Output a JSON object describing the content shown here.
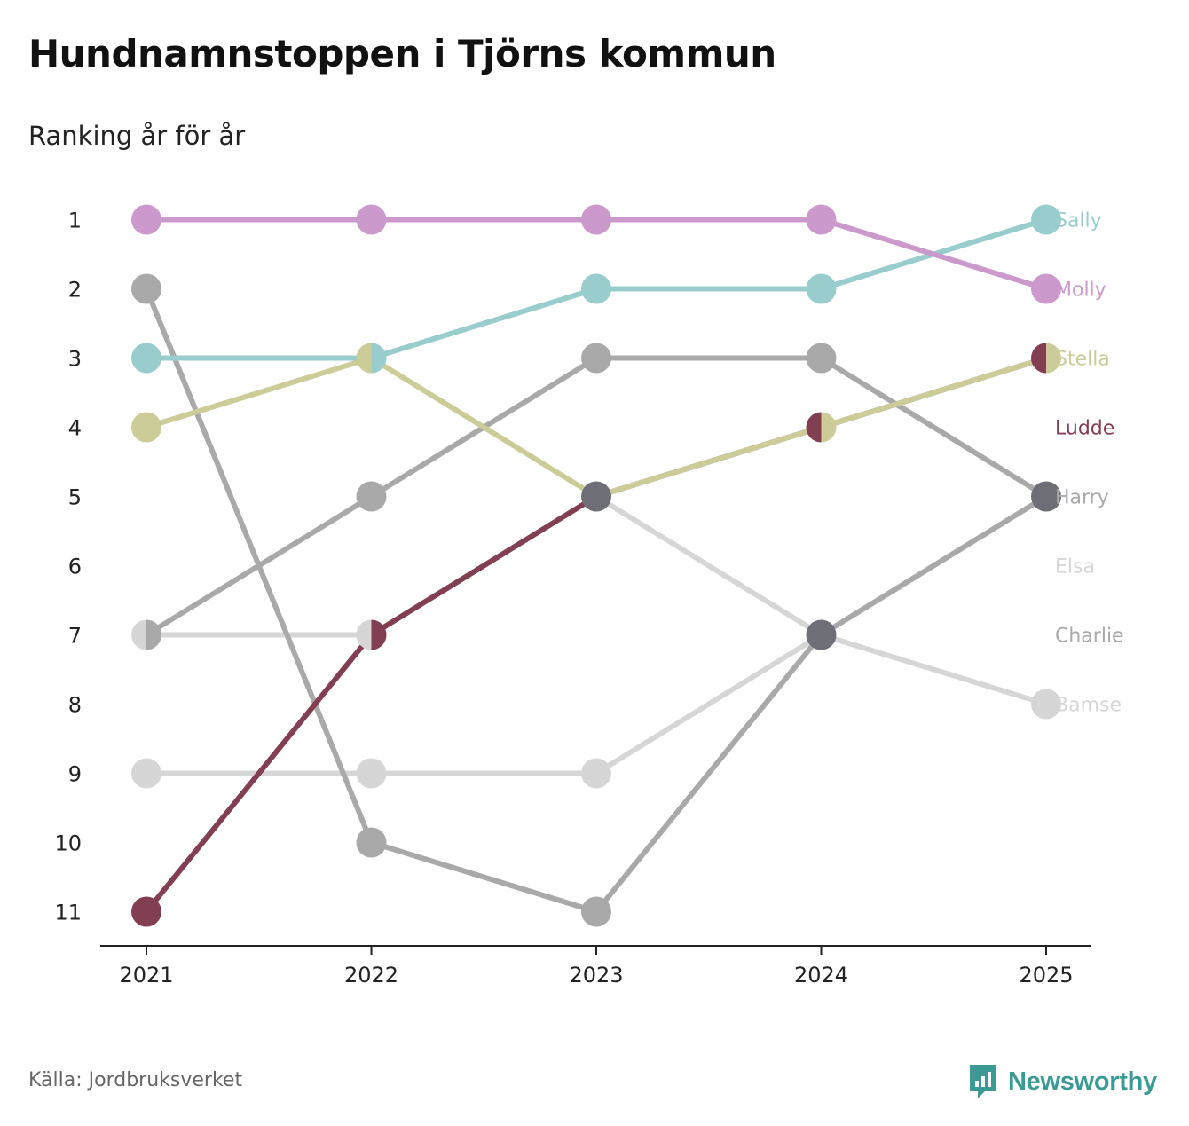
{
  "header": {
    "title": "Hundnamnstoppen i Tjörns kommun",
    "subtitle": "Ranking år för år"
  },
  "footer": {
    "source": "Källa: Jordbruksverket",
    "brand": "Newsworthy"
  },
  "colors": {
    "axis": "#222222",
    "brand": "#3c9a95"
  },
  "chart_data": {
    "type": "line",
    "subtype": "bump",
    "title": "Hundnamnstoppen i Tjörns kommun",
    "subtitle": "Ranking år för år",
    "x": [
      "2021",
      "2022",
      "2023",
      "2024",
      "2025"
    ],
    "y_ticks": [
      "1",
      "2",
      "3",
      "4",
      "5",
      "6",
      "7",
      "8",
      "9",
      "10",
      "11"
    ],
    "ylim": [
      1,
      11
    ],
    "y_inverted": true,
    "grid": false,
    "legend": "direct labels at right",
    "series": [
      {
        "name": "Elsa",
        "color": "#d6d6d6",
        "ranks": [
          9,
          9,
          9,
          7,
          5
        ]
      },
      {
        "name": "Bamse",
        "color": "#d6d6d6",
        "ranks": [
          7,
          7,
          5,
          7,
          8
        ]
      },
      {
        "name": "Charlie",
        "color": "#a9a9a9",
        "ranks": [
          7,
          5,
          3,
          3,
          5
        ]
      },
      {
        "name": "Harry",
        "color": "#a9a9a9",
        "ranks": [
          2,
          10,
          11,
          7,
          5
        ]
      },
      {
        "name": "Ludde",
        "color": "#833f52",
        "ranks": [
          11,
          7,
          5,
          4,
          3
        ]
      },
      {
        "name": "Stella",
        "color": "#cccc99",
        "ranks": [
          4,
          3,
          5,
          4,
          3
        ]
      },
      {
        "name": "Sally",
        "color": "#99cccc",
        "ranks": [
          3,
          3,
          2,
          2,
          1
        ]
      },
      {
        "name": "Molly",
        "color": "#cc99cc",
        "ranks": [
          1,
          1,
          1,
          1,
          2
        ]
      }
    ],
    "labels": [
      {
        "name": "Sally",
        "rank": 1
      },
      {
        "name": "Molly",
        "rank": 2
      },
      {
        "name": "Stella",
        "rank": 3
      },
      {
        "name": "Ludde",
        "rank": 4
      },
      {
        "name": "Harry",
        "rank": 5
      },
      {
        "name": "Elsa",
        "rank": 6
      },
      {
        "name": "Charlie",
        "rank": 7
      },
      {
        "name": "Bamse",
        "rank": 8
      }
    ],
    "overlap_color": "#6e6e76"
  }
}
